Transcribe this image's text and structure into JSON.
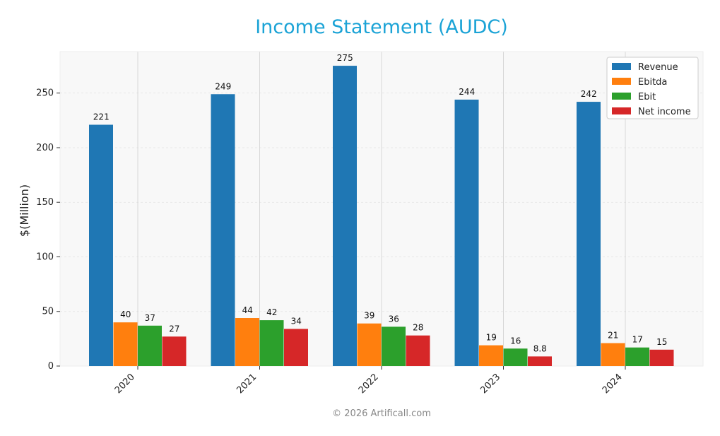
{
  "chart_data": {
    "type": "bar",
    "title": "Income Statement (AUDC)",
    "xlabel": "",
    "ylabel": "$(Million)",
    "categories": [
      "2020",
      "2021",
      "2022",
      "2023",
      "2024"
    ],
    "series": [
      {
        "name": "Revenue",
        "color": "#1f77b4",
        "values": [
          221,
          249,
          275,
          244,
          242
        ],
        "labels": [
          "221",
          "249",
          "275",
          "244",
          "242"
        ]
      },
      {
        "name": "Ebitda",
        "color": "#ff7f0e",
        "values": [
          40,
          44,
          39,
          19,
          21
        ],
        "labels": [
          "40",
          "44",
          "39",
          "19",
          "21"
        ]
      },
      {
        "name": "Ebit",
        "color": "#2ca02c",
        "values": [
          37,
          42,
          36,
          16,
          17
        ],
        "labels": [
          "37",
          "42",
          "36",
          "16",
          "17"
        ]
      },
      {
        "name": "Net income",
        "color": "#d62728",
        "values": [
          27,
          34,
          28,
          8.8,
          15
        ],
        "labels": [
          "27",
          "34",
          "28",
          "8.8",
          "15"
        ]
      }
    ],
    "ylim": [
      0,
      288
    ],
    "yticks": [
      0,
      50,
      100,
      150,
      200,
      250
    ],
    "grid": true,
    "legend_position": "top-right"
  },
  "footer": "© 2026 Artificall.com"
}
